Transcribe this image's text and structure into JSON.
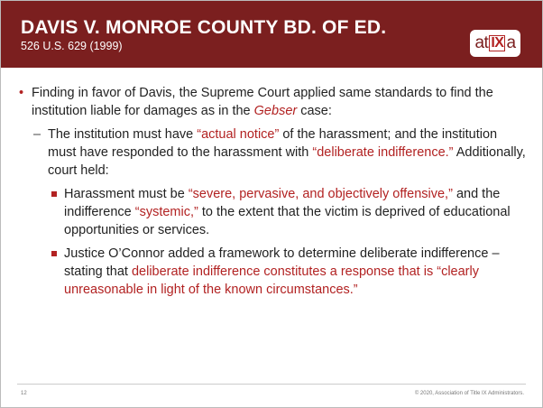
{
  "header": {
    "title": "DAVIS V. MONROE COUNTY BD. OF ED.",
    "subtitle": "526 U.S. 629 (1999)",
    "logo": [
      "at",
      "IX",
      "a"
    ]
  },
  "bullets": [
    {
      "level": 0,
      "marker": "•",
      "segments": [
        {
          "text": "Finding in favor of Davis, the Supreme Court applied same standards to find the institution liable for damages as in the "
        },
        {
          "text": "Gebser",
          "color": "#b22222",
          "italic": true
        },
        {
          "text": " case:"
        }
      ]
    },
    {
      "level": 1,
      "marker": "–",
      "segments": [
        {
          "text": "The institution must have "
        },
        {
          "text": "“actual notice”",
          "color": "#b22222"
        },
        {
          "text": " of the harassment; and the institution must have responded to the harassment with "
        },
        {
          "text": "“deliberate indifference.”",
          "color": "#b22222"
        },
        {
          "text": " Additionally, court held:"
        }
      ]
    },
    {
      "level": 2,
      "segments": [
        {
          "text": "Harassment must be "
        },
        {
          "text": "“severe, pervasive, and objectively offensive,”",
          "color": "#b22222"
        },
        {
          "text": " and the indifference "
        },
        {
          "text": "“systemic,”",
          "color": "#b22222"
        },
        {
          "text": " to the extent that the victim is deprived of educational opportunities or services."
        }
      ]
    },
    {
      "level": 2,
      "segments": [
        {
          "text": "Justice O’Connor added a framework to determine deliberate indifference – stating that "
        },
        {
          "text": "deliberate indifference constitutes a response that is “clearly unreasonable in light of the known circumstances.”",
          "color": "#b22222"
        }
      ]
    }
  ],
  "footer": {
    "page": "12",
    "copyright": "© 2020, Association of Title IX Administrators."
  }
}
